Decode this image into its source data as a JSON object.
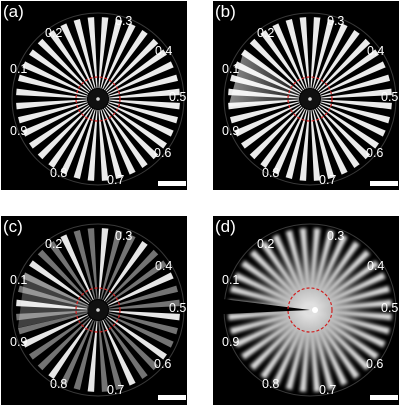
{
  "panels": [
    {
      "id": "a",
      "label": "(a)",
      "style": "full",
      "ticks": [
        "0.1",
        "0.2",
        "0.3",
        "0.4",
        "0.5",
        "0.6",
        "0.7",
        "0.8",
        "0.9"
      ]
    },
    {
      "id": "b",
      "label": "(b)",
      "style": "smeared-left",
      "ticks": [
        "0.1",
        "0.2",
        "0.3",
        "0.4",
        "0.5",
        "0.6",
        "0.7",
        "0.8",
        "0.9"
      ]
    },
    {
      "id": "c",
      "label": "(c)",
      "style": "sparse",
      "ticks": [
        "0.1",
        "0.2",
        "0.3",
        "0.4",
        "0.5",
        "0.6",
        "0.7",
        "0.8",
        "0.9"
      ]
    },
    {
      "id": "d",
      "label": "(d)",
      "style": "blurred",
      "ticks": [
        "0.1",
        "0.2",
        "0.3",
        "0.4",
        "0.5",
        "0.6",
        "0.7",
        "0.8",
        "0.9"
      ]
    }
  ],
  "colors": {
    "background": "#000000",
    "spokes": "#ffffff",
    "dashed_circle": "#d02020"
  }
}
